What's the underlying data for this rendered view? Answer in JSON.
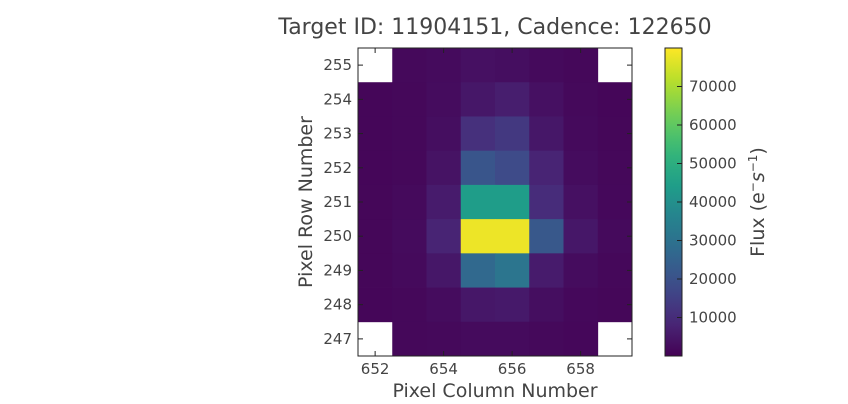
{
  "chart_data": {
    "type": "heatmap",
    "title": "Target ID: 11904151, Cadence: 122650",
    "xlabel": "Pixel Column Number",
    "ylabel": "Pixel Row Number",
    "colorbar_label": "Flux (e⁻s⁻¹)",
    "colorbar_label_parts": {
      "main": "Flux (e",
      "sup1": "−",
      "mid": "s",
      "sup2": "−1",
      "end": ")"
    },
    "colormap": "viridis",
    "grid": false,
    "x_columns": [
      652,
      653,
      654,
      655,
      656,
      657,
      658,
      659
    ],
    "y_rows": [
      255,
      254,
      253,
      252,
      251,
      250,
      249,
      248,
      247
    ],
    "xlim": [
      651.5,
      659.5
    ],
    "ylim": [
      246.5,
      255.5
    ],
    "x_ticks": [
      652,
      654,
      656,
      658
    ],
    "y_ticks": [
      247,
      248,
      249,
      250,
      251,
      252,
      253,
      254,
      255
    ],
    "colorbar_range": [
      0,
      80000
    ],
    "colorbar_ticks": [
      10000,
      20000,
      30000,
      40000,
      50000,
      60000,
      70000
    ],
    "values": [
      [
        null,
        1800,
        2200,
        3500,
        3000,
        2000,
        1600,
        null
      ],
      [
        1200,
        1500,
        2500,
        5000,
        6500,
        3500,
        1800,
        1200
      ],
      [
        1200,
        1500,
        3000,
        11000,
        13000,
        5000,
        2000,
        1300
      ],
      [
        1200,
        1600,
        4000,
        21000,
        18000,
        8000,
        2500,
        1500
      ],
      [
        1300,
        2000,
        6000,
        44000,
        44000,
        10000,
        3500,
        1700
      ],
      [
        1300,
        2200,
        8000,
        78000,
        78000,
        22000,
        5000,
        2000
      ],
      [
        1300,
        2000,
        5000,
        27000,
        31000,
        6000,
        2500,
        1600
      ],
      [
        1200,
        1600,
        2500,
        5000,
        5500,
        3000,
        1700,
        1300
      ],
      [
        null,
        1500,
        1800,
        2200,
        2200,
        1800,
        1400,
        null
      ]
    ]
  }
}
